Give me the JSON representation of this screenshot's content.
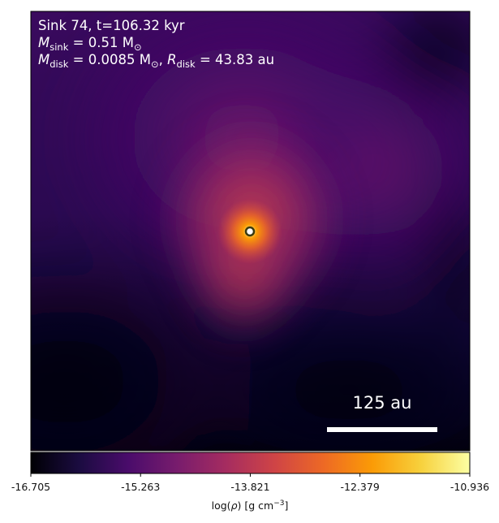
{
  "chart_data": {
    "type": "heatmap",
    "colormap": "inferno",
    "colors": {
      "inferno": [
        "#000004",
        "#1b0c41",
        "#4a0c6b",
        "#781c6d",
        "#a52c60",
        "#cf4446",
        "#ed6925",
        "#fb9b06",
        "#f7d13d",
        "#fcffa4"
      ],
      "sink_marker_fill": "#ffffff",
      "sink_marker_edge": "#3a3a10",
      "scale_bar": "#ffffff"
    },
    "annotations": {
      "line1": "Sink 74, t=106.32 kyr",
      "line2_symbol": "M",
      "line2_sub": "sink",
      "line2_rest": " = 0.51 M",
      "line2_sun": "⊙",
      "line3_symbol": "M",
      "line3_sub": "disk",
      "line3_mid": " = 0.0085 M",
      "line3_sun": "⊙",
      "line3_sep": ", ",
      "line3_r_symbol": "R",
      "line3_r_sub": "disk",
      "line3_r_rest": " = 43.83 au"
    },
    "scale_bar": {
      "label": "125 au",
      "length_au": 125
    },
    "sink": {
      "name": "Sink 74"
    },
    "colorbar": {
      "label_prefix": "log(",
      "label_rho": "ρ",
      "label_mid": ") [g cm",
      "label_exp": "−3",
      "label_suffix": "]",
      "range": [
        -16.705,
        -10.936
      ],
      "ticks": [
        {
          "value": -16.705,
          "label": "-16.705"
        },
        {
          "value": -15.263,
          "label": "-15.263"
        },
        {
          "value": -13.821,
          "label": "-13.821"
        },
        {
          "value": -12.379,
          "label": "-12.379"
        },
        {
          "value": -10.936,
          "label": "-10.936"
        }
      ]
    }
  }
}
